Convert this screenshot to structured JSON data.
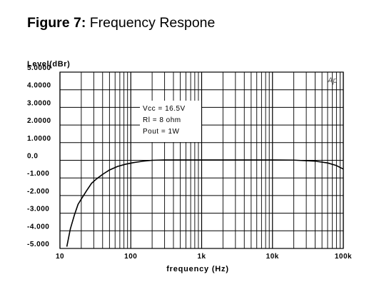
{
  "figure": {
    "label": "Figure 7:",
    "title": "Frequency Respone"
  },
  "chart_data": {
    "type": "line",
    "ylabel": "Level(dBr)",
    "xlabel": "frequency (Hz)",
    "x_scale": "log",
    "xlim": [
      10,
      100000
    ],
    "ylim": [
      -5,
      5
    ],
    "grid": true,
    "x_ticks": [
      {
        "value": 10,
        "label": "10"
      },
      {
        "value": 100,
        "label": "100"
      },
      {
        "value": 1000,
        "label": "1k"
      },
      {
        "value": 10000,
        "label": "10k"
      },
      {
        "value": 100000,
        "label": "100k"
      }
    ],
    "y_ticks": [
      {
        "value": 5,
        "label": "5.0000"
      },
      {
        "value": 4,
        "label": "4.0000"
      },
      {
        "value": 3,
        "label": "3.0000"
      },
      {
        "value": 2,
        "label": "2.0000"
      },
      {
        "value": 1,
        "label": "1.0000"
      },
      {
        "value": 0,
        "label": "0.0"
      },
      {
        "value": -1,
        "label": "-1.000"
      },
      {
        "value": -2,
        "label": "-2.000"
      },
      {
        "value": -3,
        "label": "-3.000"
      },
      {
        "value": -4,
        "label": "-4.000"
      },
      {
        "value": -5,
        "label": "-5.000"
      }
    ],
    "annotation_lines": [
      "Vcc = 16.5V",
      "Rl = 8 ohm",
      "Pout = 1W"
    ],
    "watermark": "Ap",
    "series": [
      {
        "color": "#000000",
        "points": [
          [
            12.5,
            -4.9
          ],
          [
            14,
            -3.9
          ],
          [
            16,
            -3.1
          ],
          [
            18,
            -2.5
          ],
          [
            20,
            -2.2
          ],
          [
            24,
            -1.7
          ],
          [
            28,
            -1.3
          ],
          [
            33,
            -1.05
          ],
          [
            40,
            -0.8
          ],
          [
            50,
            -0.55
          ],
          [
            65,
            -0.35
          ],
          [
            85,
            -0.22
          ],
          [
            110,
            -0.13
          ],
          [
            150,
            -0.05
          ],
          [
            200,
            0.0
          ],
          [
            300,
            0.02
          ],
          [
            500,
            0.02
          ],
          [
            1000,
            0.02
          ],
          [
            3000,
            0.02
          ],
          [
            10000,
            0.02
          ],
          [
            20000,
            0.01
          ],
          [
            40000,
            -0.05
          ],
          [
            60000,
            -0.15
          ],
          [
            80000,
            -0.3
          ],
          [
            100000,
            -0.5
          ]
        ]
      }
    ]
  }
}
